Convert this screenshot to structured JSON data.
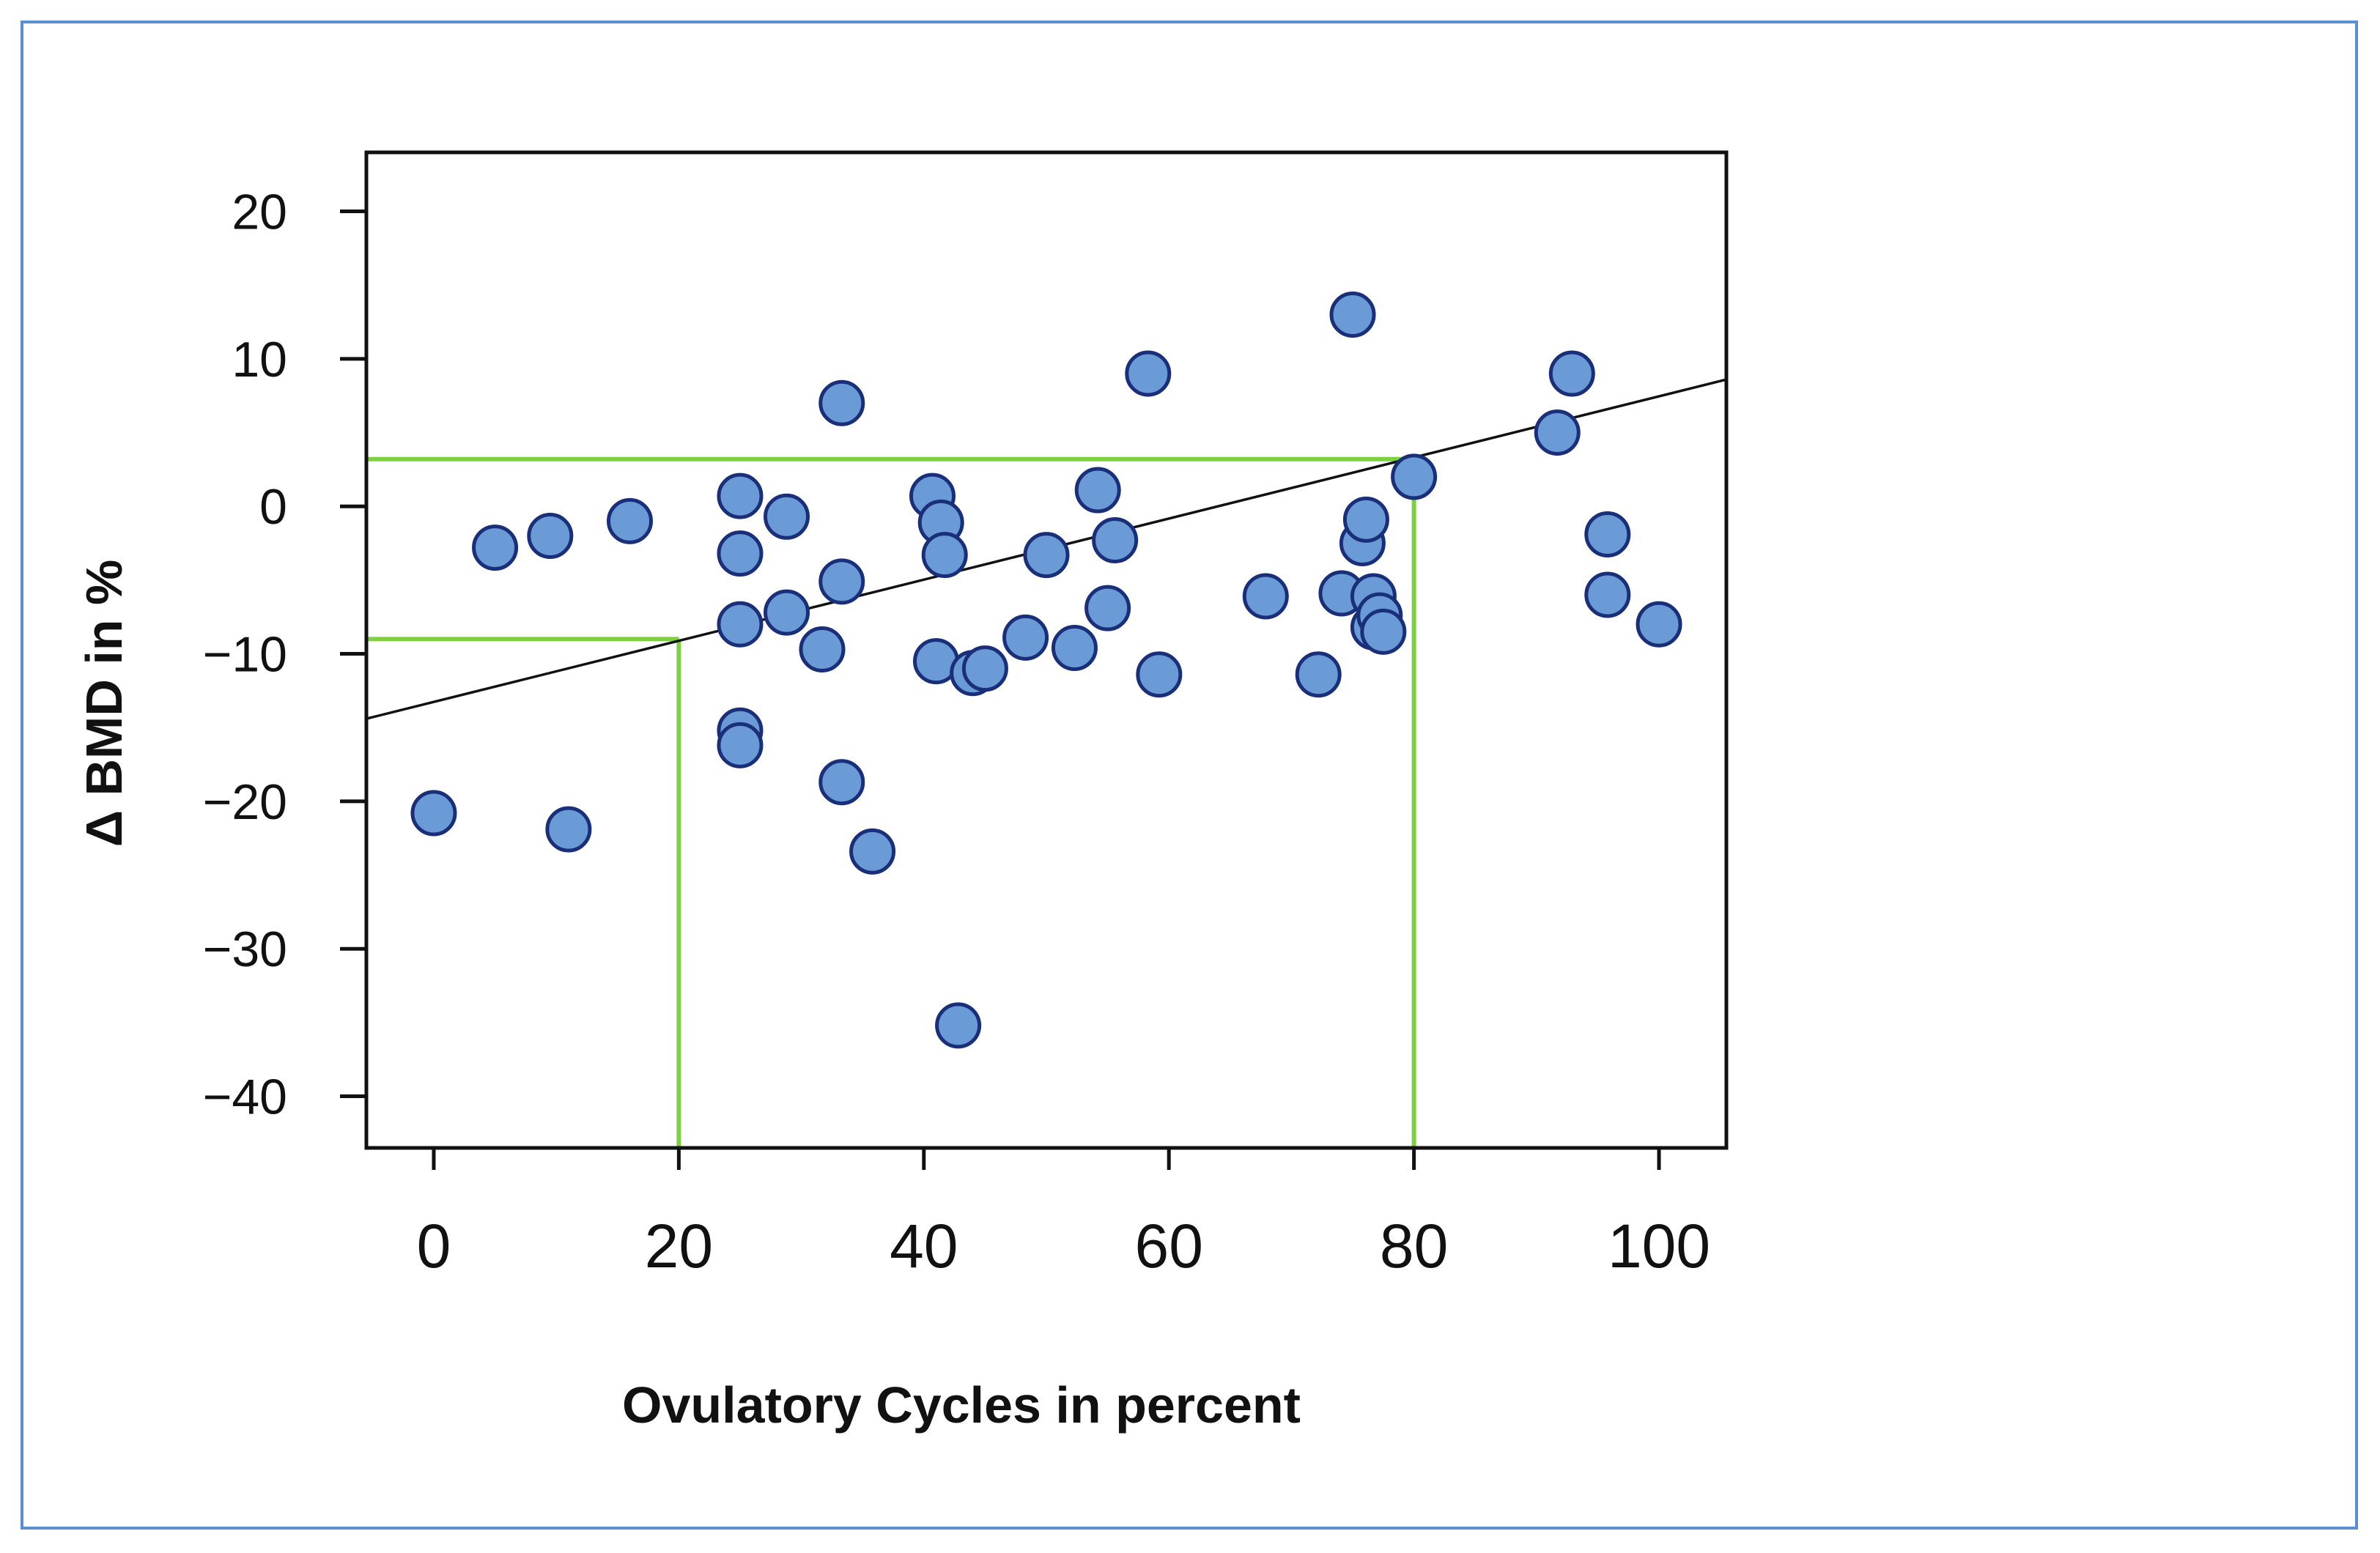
{
  "chart_data": {
    "type": "scatter",
    "title": "",
    "xlabel": "Ovulatory Cycles in percent",
    "ylabel": "Δ BMD in %",
    "xlim": [
      -5.5,
      105.5
    ],
    "ylim": [
      -43.5,
      24
    ],
    "xticks": [
      0,
      20,
      40,
      60,
      80,
      100
    ],
    "xtick_labels": [
      "0",
      "20",
      "40",
      "60",
      "80",
      "100"
    ],
    "yticks": [
      20,
      10,
      0,
      -10,
      -20,
      -30,
      -40
    ],
    "ytick_labels": [
      "20",
      "10",
      "0",
      "−10",
      "−20",
      "−30",
      "−40"
    ],
    "grid": false,
    "legend": "none",
    "marker_color": "#6a9bd6",
    "marker_edge_color": "#1a2f7a",
    "fit_line": {
      "x": [
        -5.5,
        105.5
      ],
      "y": [
        -14.4,
        8.6
      ],
      "color": "#111111"
    },
    "reference_lines": {
      "color": "#7ed043",
      "x_points": [
        20,
        80
      ],
      "y_values": [
        -9,
        3.2
      ]
    },
    "points": {
      "x": [
        0,
        5,
        9.5,
        11,
        16,
        25,
        25,
        25,
        25,
        25,
        28.8,
        28.8,
        31.7,
        33.3,
        33.3,
        33.3,
        35.8,
        40.7,
        41.4,
        41.7,
        41,
        42.8,
        44,
        45,
        48.3,
        50,
        52.3,
        54.2,
        55,
        55.6,
        58.3,
        59.2,
        67.9,
        72.2,
        74.1,
        75,
        75.8,
        76.1,
        76.7,
        76.7,
        77.2,
        77.5,
        80,
        91.7,
        92.9,
        95.8,
        95.8,
        100
      ],
      "y": [
        -20.8,
        -2.8,
        -2,
        -21.9,
        -1,
        0.7,
        -3.2,
        -8,
        -15.2,
        -16.2,
        -0.7,
        -7.2,
        -9.7,
        7,
        -5.1,
        -18.7,
        -23.4,
        0.7,
        -1.1,
        -3.3,
        -10.5,
        -35.2,
        -11.3,
        -11,
        -8.9,
        -3.3,
        -9.6,
        1.1,
        -6.9,
        -2.3,
        9,
        -11.4,
        -6.1,
        -11.4,
        -5.9,
        13,
        -2.5,
        -0.9,
        -6.1,
        -8.2,
        -7.4,
        -8.5,
        2,
        5,
        9,
        -1.9,
        -6,
        -8
      ]
    }
  }
}
